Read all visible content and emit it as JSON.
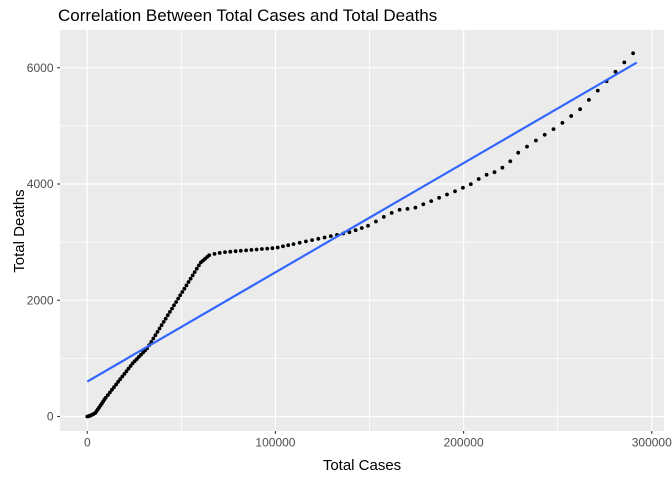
{
  "chart_data": {
    "type": "scatter",
    "title": "Correlation Between Total Cases and Total Deaths",
    "xlabel": "Total Cases",
    "ylabel": "Total Deaths",
    "x_ticks": [
      0,
      100000,
      200000,
      300000
    ],
    "x_tick_labels": [
      "0",
      "100000",
      "200000",
      "300000"
    ],
    "y_ticks": [
      0,
      2000,
      4000,
      6000
    ],
    "y_tick_labels": [
      "0",
      "2000",
      "4000",
      "6000"
    ],
    "x_minor_ticks": [
      50000,
      150000,
      250000
    ],
    "y_minor_ticks": [
      1000,
      3000,
      5000
    ],
    "xlim": [
      -14500,
      306500
    ],
    "ylim": [
      -250,
      6650
    ],
    "grid": true,
    "legend": false,
    "colors": {
      "panel_bg": "#EBEBEB",
      "grid_major": "#FFFFFF",
      "grid_minor": "#FFFFFF",
      "tick_mark": "#333333",
      "tick_label": "#4D4D4D",
      "point": "#000000",
      "trend": "#3366FF",
      "title": "#000000",
      "axis_title": "#000000"
    },
    "trend_line": {
      "x": [
        0,
        292000
      ],
      "y": [
        600,
        6090
      ]
    },
    "points": [
      [
        0,
        0
      ],
      [
        700,
        5
      ],
      [
        1400,
        12
      ],
      [
        2100,
        22
      ],
      [
        2800,
        34
      ],
      [
        3500,
        46
      ],
      [
        4200,
        60
      ],
      [
        4900,
        90
      ],
      [
        5600,
        122
      ],
      [
        6300,
        155
      ],
      [
        7000,
        188
      ],
      [
        7700,
        222
      ],
      [
        8400,
        258
      ],
      [
        9100,
        292
      ],
      [
        9800,
        322
      ],
      [
        10900,
        368
      ],
      [
        12000,
        413
      ],
      [
        13100,
        459
      ],
      [
        14200,
        504
      ],
      [
        15300,
        550
      ],
      [
        16400,
        596
      ],
      [
        17500,
        641
      ],
      [
        18600,
        687
      ],
      [
        19700,
        732
      ],
      [
        20800,
        778
      ],
      [
        21900,
        823
      ],
      [
        23000,
        869
      ],
      [
        24100,
        914
      ],
      [
        25200,
        951
      ],
      [
        26300,
        988
      ],
      [
        27400,
        1025
      ],
      [
        28500,
        1062
      ],
      [
        29600,
        1099
      ],
      [
        30700,
        1136
      ],
      [
        31800,
        1173
      ],
      [
        32900,
        1227
      ],
      [
        34000,
        1284
      ],
      [
        35100,
        1341
      ],
      [
        36200,
        1398
      ],
      [
        37300,
        1456
      ],
      [
        38400,
        1513
      ],
      [
        39500,
        1570
      ],
      [
        40600,
        1627
      ],
      [
        41700,
        1684
      ],
      [
        42800,
        1742
      ],
      [
        43900,
        1799
      ],
      [
        45000,
        1856
      ],
      [
        46100,
        1913
      ],
      [
        47200,
        1970
      ],
      [
        48300,
        2028
      ],
      [
        49400,
        2085
      ],
      [
        50500,
        2142
      ],
      [
        51600,
        2199
      ],
      [
        52700,
        2256
      ],
      [
        53800,
        2314
      ],
      [
        54900,
        2371
      ],
      [
        56000,
        2428
      ],
      [
        57100,
        2485
      ],
      [
        58200,
        2542
      ],
      [
        59300,
        2600
      ],
      [
        60400,
        2651
      ],
      [
        61500,
        2682
      ],
      [
        62600,
        2713
      ],
      [
        63700,
        2744
      ],
      [
        64800,
        2774
      ],
      [
        67600,
        2797
      ],
      [
        70400,
        2815
      ],
      [
        73200,
        2828
      ],
      [
        76000,
        2836
      ],
      [
        78800,
        2843
      ],
      [
        81600,
        2851
      ],
      [
        84400,
        2858
      ],
      [
        87200,
        2866
      ],
      [
        90000,
        2873
      ],
      [
        92800,
        2881
      ],
      [
        95600,
        2888
      ],
      [
        98400,
        2896
      ],
      [
        101200,
        2908
      ],
      [
        104000,
        2928
      ],
      [
        106800,
        2947
      ],
      [
        109600,
        2966
      ],
      [
        112900,
        2989
      ],
      [
        116200,
        3012
      ],
      [
        119500,
        3034
      ],
      [
        122800,
        3057
      ],
      [
        126100,
        3080
      ],
      [
        129400,
        3103
      ],
      [
        132700,
        3125
      ],
      [
        136000,
        3148
      ],
      [
        139300,
        3171
      ],
      [
        142600,
        3205
      ],
      [
        145900,
        3243
      ],
      [
        149200,
        3281
      ],
      [
        153400,
        3355
      ],
      [
        157600,
        3434
      ],
      [
        161800,
        3503
      ],
      [
        166000,
        3557
      ],
      [
        170200,
        3572
      ],
      [
        174400,
        3594
      ],
      [
        178600,
        3650
      ],
      [
        182800,
        3706
      ],
      [
        187000,
        3763
      ],
      [
        191200,
        3819
      ],
      [
        195400,
        3875
      ],
      [
        199600,
        3934
      ],
      [
        203800,
        3997
      ],
      [
        208000,
        4087
      ],
      [
        212200,
        4158
      ],
      [
        216400,
        4203
      ],
      [
        220600,
        4281
      ],
      [
        224800,
        4391
      ],
      [
        229000,
        4538
      ],
      [
        233700,
        4643
      ],
      [
        238400,
        4748
      ],
      [
        243100,
        4846
      ],
      [
        247800,
        4944
      ],
      [
        252500,
        5052
      ],
      [
        257200,
        5170
      ],
      [
        261900,
        5287
      ],
      [
        266600,
        5447
      ],
      [
        271300,
        5608
      ],
      [
        276000,
        5769
      ],
      [
        280700,
        5931
      ],
      [
        285400,
        6093
      ],
      [
        290100,
        6249
      ]
    ]
  }
}
